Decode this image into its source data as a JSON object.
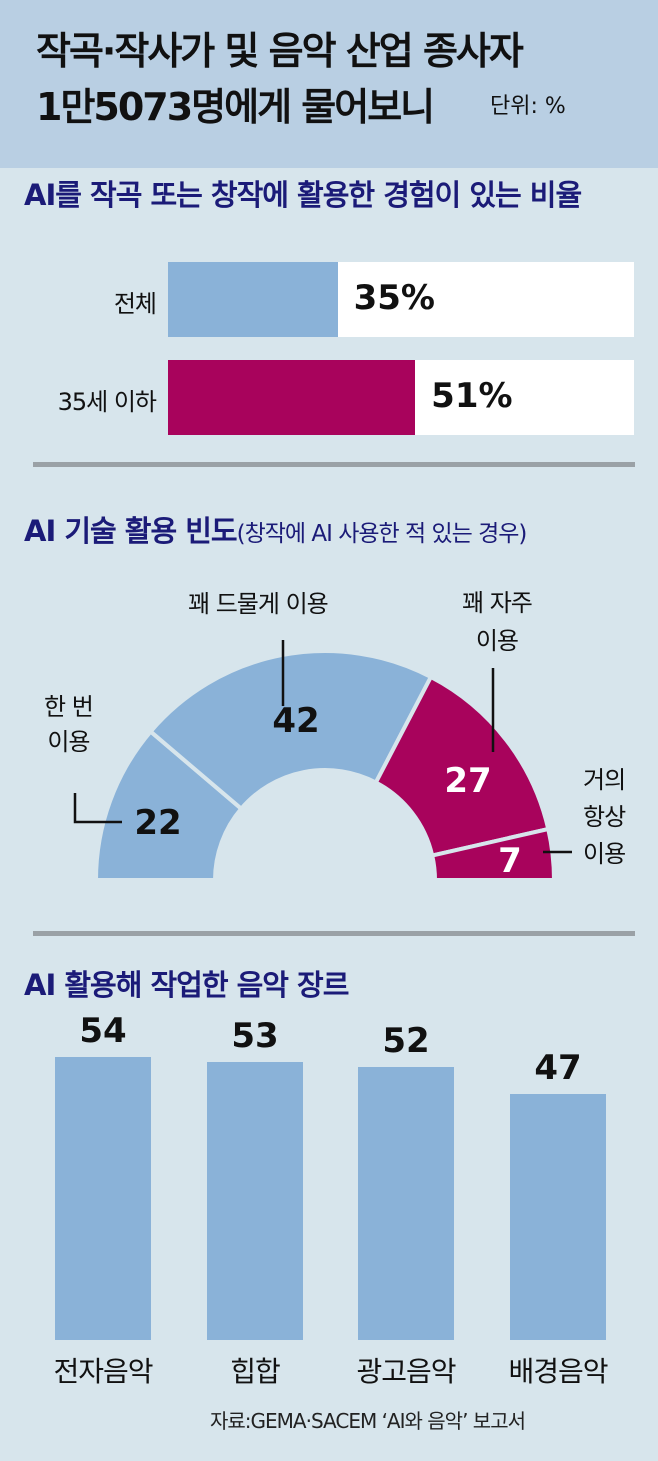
{
  "header": {
    "title_line1": "작곡·작사가 및 음악 산업 종사자",
    "title_line2": "1만5073명에게 물어보니",
    "unit": "단위: %"
  },
  "colors": {
    "blue": "#8ab2d8",
    "magenta": "#a8035c",
    "header_bg": "#b9cfe3",
    "bg": "#d7e5ec",
    "section_title": "#1b1b78"
  },
  "chart_data": [
    {
      "type": "bar",
      "orientation": "horizontal",
      "title": "AI를 작곡 또는 창작에 활용한 경험이 있는 비율",
      "categories": [
        "전체",
        "35세 이하"
      ],
      "values": [
        35,
        51
      ],
      "value_labels": [
        "35%",
        "51%"
      ],
      "colors": [
        "#8ab2d8",
        "#a8035c"
      ],
      "xlim": [
        0,
        100
      ]
    },
    {
      "type": "pie",
      "style": "half-donut",
      "title": "AI 기술 활용 빈도",
      "subtitle": "(창작에 AI 사용한 적 있는 경우)",
      "categories": [
        "한 번 이용",
        "꽤 드물게 이용",
        "꽤 자주 이용",
        "거의 항상 이용"
      ],
      "label_lines": [
        [
          "한 번",
          "이용"
        ],
        [
          "꽤 드물게 이용"
        ],
        [
          "꽤 자주",
          "이용"
        ],
        [
          "거의",
          "항상",
          "이용"
        ]
      ],
      "values": [
        22,
        42,
        27,
        7
      ],
      "colors": [
        "#8ab2d8",
        "#8ab2d8",
        "#a8035c",
        "#a8035c"
      ]
    },
    {
      "type": "bar",
      "title": "AI 활용해 작업한 음악 장르",
      "categories": [
        "전자음악",
        "힙합",
        "광고음악",
        "배경음악"
      ],
      "values": [
        54,
        53,
        52,
        47
      ],
      "color": "#8ab2d8",
      "ylim": [
        0,
        54
      ]
    }
  ],
  "source": "자료:GEMA·SACEM ‘AI와 음악’ 보고서"
}
